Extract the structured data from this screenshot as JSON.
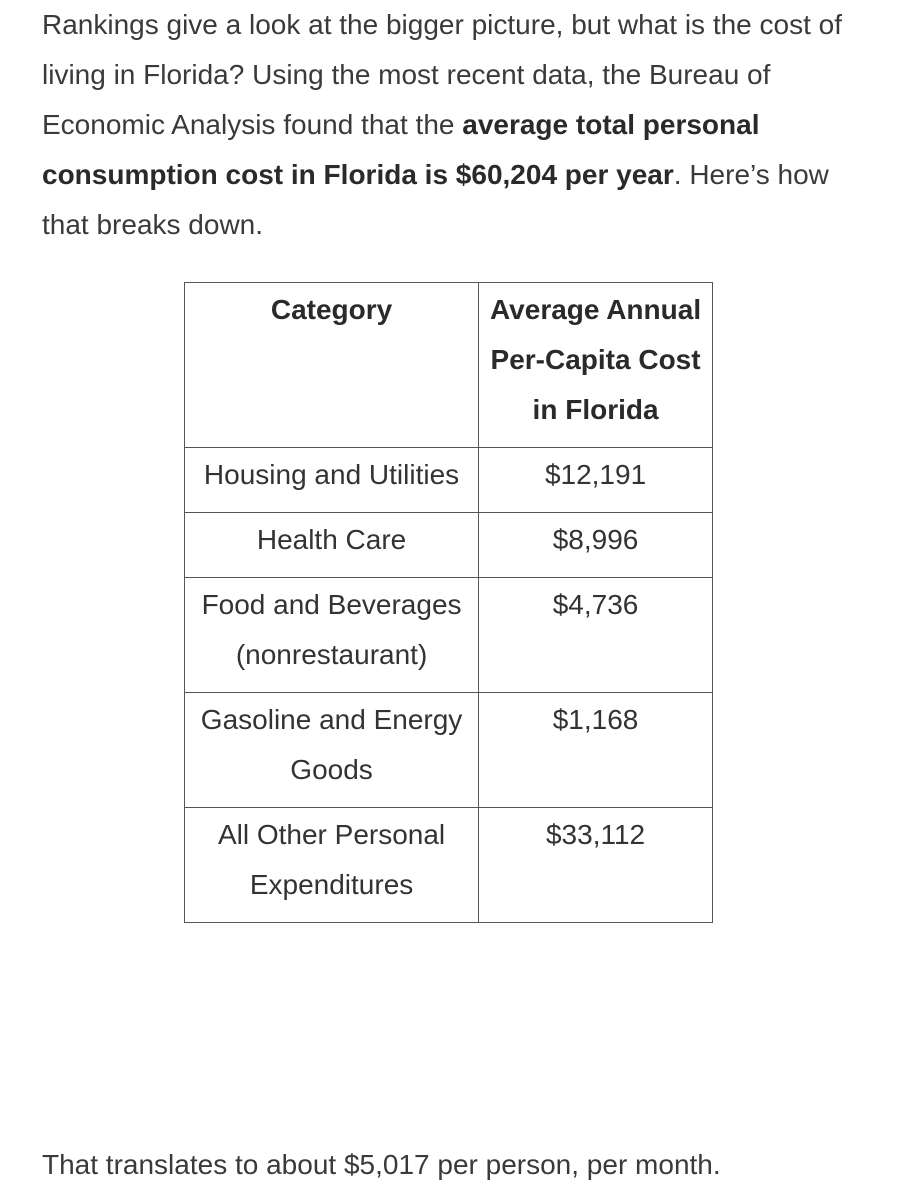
{
  "intro": {
    "part1": "Rankings give a look at the bigger picture, but what is the cost of living in Florida? Using the most recent data, the Bureau of Economic Analysis found that the ",
    "bold": "average total personal consumption cost in Florida is $60,204 per year",
    "part2": ". Here’s how that breaks down."
  },
  "table": {
    "headers": {
      "category": "Category",
      "cost": "Average Annual Per-Capita Cost in Florida"
    },
    "rows": [
      {
        "category": "Housing and Utilities",
        "cost": "$12,191"
      },
      {
        "category": "Health Care",
        "cost": "$8,996"
      },
      {
        "category": "Food and Beverages (nonrestaurant)",
        "cost": "$4,736"
      },
      {
        "category": "Gasoline and Energy Goods",
        "cost": "$1,168"
      },
      {
        "category": "All Other Personal Expenditures",
        "cost": "$33,112"
      }
    ]
  },
  "outro": "That translates to about $5,017 per person, per month."
}
